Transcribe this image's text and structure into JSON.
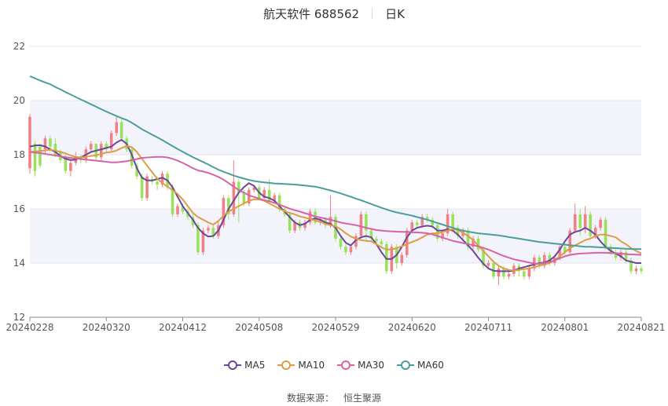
{
  "header": {
    "title": "航天软件 688562",
    "period": "日K"
  },
  "source": {
    "label": "数据来源：",
    "value": "恒生聚源"
  },
  "colors": {
    "up": "#f07f86",
    "down": "#96e35b",
    "ma5": "#6b479b",
    "ma10": "#e09b45",
    "ma30": "#d463a8",
    "ma60": "#4a9f9c",
    "band": "#f3f4fb",
    "grid": "#e3e6ef",
    "axis": "#555555"
  },
  "chart_data": {
    "type": "candlestick",
    "y_axis": {
      "min": 12,
      "max": 22,
      "ticks": [
        "12",
        "14",
        "16",
        "18",
        "20",
        "22"
      ]
    },
    "x_ticks": [
      "20240228",
      "20240320",
      "20240412",
      "20240508",
      "20240529",
      "20240620",
      "20240711",
      "20240801",
      "20240821"
    ],
    "n": 121,
    "ohlc": [
      [
        17.5,
        19.4,
        17.3,
        19.5
      ],
      [
        18.4,
        17.4,
        17.2,
        18.5
      ],
      [
        18.3,
        17.6,
        17.5,
        18.4
      ],
      [
        18.2,
        18.6,
        18.0,
        18.7
      ],
      [
        18.6,
        18.3,
        18.1,
        18.7
      ],
      [
        18.4,
        18.0,
        17.9,
        18.6
      ],
      [
        18.1,
        17.8,
        17.7,
        18.2
      ],
      [
        17.9,
        17.4,
        17.3,
        18.0
      ],
      [
        17.4,
        17.7,
        17.2,
        17.8
      ],
      [
        17.7,
        17.9,
        17.6,
        18.1
      ],
      [
        17.9,
        17.8,
        17.7,
        18.0
      ],
      [
        17.8,
        18.2,
        17.7,
        18.3
      ],
      [
        18.2,
        18.4,
        18.1,
        18.5
      ],
      [
        18.4,
        17.9,
        17.8,
        18.4
      ],
      [
        17.9,
        18.4,
        17.8,
        18.5
      ],
      [
        18.4,
        18.2,
        18.1,
        18.5
      ],
      [
        18.2,
        18.8,
        18.1,
        18.9
      ],
      [
        18.8,
        19.2,
        18.7,
        19.4
      ],
      [
        19.2,
        18.6,
        18.5,
        19.3
      ],
      [
        18.6,
        18.2,
        18.1,
        18.7
      ],
      [
        18.2,
        17.6,
        17.5,
        18.3
      ],
      [
        17.6,
        17.2,
        17.1,
        17.7
      ],
      [
        17.2,
        16.4,
        16.3,
        17.3
      ],
      [
        16.4,
        17.2,
        16.3,
        17.3
      ],
      [
        17.1,
        17.0,
        16.9,
        17.2
      ],
      [
        17.0,
        16.9,
        16.7,
        17.1
      ],
      [
        16.9,
        17.3,
        16.8,
        17.4
      ],
      [
        17.3,
        16.8,
        16.7,
        17.4
      ],
      [
        16.8,
        15.8,
        15.7,
        16.9
      ],
      [
        15.8,
        16.1,
        15.7,
        16.2
      ],
      [
        16.1,
        15.9,
        15.8,
        16.2
      ],
      [
        15.9,
        15.7,
        15.6,
        16.0
      ],
      [
        15.7,
        15.4,
        15.3,
        15.8
      ],
      [
        15.4,
        14.4,
        14.3,
        15.5
      ],
      [
        14.4,
        15.2,
        14.3,
        15.3
      ],
      [
        15.2,
        15.3,
        15.1,
        15.4
      ],
      [
        15.3,
        15.0,
        14.9,
        15.4
      ],
      [
        15.0,
        15.4,
        14.9,
        15.5
      ],
      [
        15.4,
        16.4,
        15.3,
        16.5
      ],
      [
        16.4,
        15.8,
        15.6,
        16.5
      ],
      [
        15.8,
        17.0,
        15.7,
        17.8
      ],
      [
        17.0,
        16.6,
        15.5,
        17.1
      ],
      [
        16.6,
        16.2,
        16.1,
        16.7
      ],
      [
        16.2,
        16.7,
        16.1,
        16.8
      ],
      [
        16.7,
        16.8,
        16.6,
        16.9
      ],
      [
        16.8,
        16.4,
        16.3,
        16.9
      ],
      [
        16.4,
        16.7,
        16.3,
        16.8
      ],
      [
        16.7,
        16.3,
        16.2,
        17.1
      ],
      [
        16.3,
        16.5,
        16.2,
        16.6
      ],
      [
        16.5,
        16.0,
        15.9,
        16.6
      ],
      [
        16.0,
        15.8,
        15.7,
        16.1
      ],
      [
        15.8,
        15.2,
        15.1,
        15.9
      ],
      [
        15.2,
        15.5,
        15.1,
        15.6
      ],
      [
        15.5,
        15.3,
        15.2,
        15.6
      ],
      [
        15.3,
        15.5,
        15.2,
        15.6
      ],
      [
        15.5,
        15.9,
        15.4,
        16.0
      ],
      [
        15.9,
        15.5,
        15.4,
        16.0
      ],
      [
        15.5,
        15.6,
        15.4,
        15.7
      ],
      [
        15.6,
        15.4,
        15.3,
        15.7
      ],
      [
        15.4,
        15.7,
        15.3,
        16.5
      ],
      [
        15.7,
        14.9,
        14.8,
        15.8
      ],
      [
        14.9,
        14.6,
        14.5,
        15.0
      ],
      [
        14.6,
        14.4,
        14.3,
        14.7
      ],
      [
        14.4,
        14.6,
        14.3,
        14.7
      ],
      [
        14.6,
        15.0,
        14.5,
        15.1
      ],
      [
        15.0,
        15.8,
        14.9,
        15.9
      ],
      [
        15.8,
        15.2,
        14.8,
        15.9
      ],
      [
        15.2,
        14.9,
        14.8,
        15.3
      ],
      [
        14.9,
        14.8,
        14.7,
        15.0
      ],
      [
        14.8,
        14.7,
        14.6,
        14.9
      ],
      [
        14.7,
        13.7,
        13.6,
        14.8
      ],
      [
        13.7,
        14.6,
        13.6,
        14.7
      ],
      [
        14.6,
        14.0,
        13.8,
        14.7
      ],
      [
        14.0,
        14.3,
        13.9,
        14.4
      ],
      [
        14.3,
        15.2,
        14.2,
        15.3
      ],
      [
        15.2,
        15.5,
        15.1,
        15.6
      ],
      [
        15.5,
        15.4,
        15.3,
        15.6
      ],
      [
        15.4,
        15.7,
        15.3,
        15.8
      ],
      [
        15.7,
        15.6,
        15.5,
        15.8
      ],
      [
        15.6,
        15.4,
        15.3,
        15.7
      ],
      [
        15.4,
        14.9,
        14.8,
        15.5
      ],
      [
        14.9,
        15.1,
        14.8,
        15.2
      ],
      [
        15.1,
        15.8,
        15.0,
        16.0
      ],
      [
        15.8,
        15.3,
        15.2,
        15.9
      ],
      [
        15.3,
        15.0,
        14.9,
        15.4
      ],
      [
        15.0,
        15.2,
        14.9,
        15.3
      ],
      [
        15.2,
        14.6,
        14.5,
        15.3
      ],
      [
        14.6,
        14.9,
        14.5,
        15.0
      ],
      [
        14.9,
        14.5,
        14.4,
        15.0
      ],
      [
        14.5,
        13.9,
        13.8,
        14.6
      ],
      [
        13.9,
        14.0,
        13.8,
        14.1
      ],
      [
        14.0,
        13.5,
        13.4,
        14.1
      ],
      [
        13.5,
        13.8,
        13.2,
        13.9
      ],
      [
        13.8,
        13.5,
        13.4,
        13.9
      ],
      [
        13.5,
        13.6,
        13.4,
        13.7
      ],
      [
        13.6,
        13.9,
        13.5,
        14.0
      ],
      [
        13.9,
        13.7,
        13.5,
        14.0
      ],
      [
        13.7,
        13.5,
        13.4,
        13.8
      ],
      [
        13.5,
        13.8,
        13.4,
        13.9
      ],
      [
        13.8,
        14.2,
        13.7,
        14.3
      ],
      [
        14.2,
        13.9,
        13.8,
        14.3
      ],
      [
        13.9,
        14.3,
        13.8,
        14.4
      ],
      [
        14.3,
        14.0,
        13.9,
        14.4
      ],
      [
        14.0,
        14.2,
        13.9,
        14.3
      ],
      [
        14.2,
        14.6,
        14.1,
        14.7
      ],
      [
        14.6,
        14.4,
        14.3,
        14.7
      ],
      [
        14.4,
        15.2,
        14.3,
        15.3
      ],
      [
        15.2,
        15.8,
        15.1,
        16.2
      ],
      [
        15.8,
        15.3,
        15.0,
        16.0
      ],
      [
        15.3,
        15.8,
        15.1,
        16.1
      ],
      [
        15.8,
        15.0,
        14.9,
        15.9
      ],
      [
        15.0,
        15.3,
        14.9,
        15.4
      ],
      [
        15.3,
        15.6,
        15.2,
        15.7
      ],
      [
        15.6,
        14.6,
        14.5,
        15.7
      ],
      [
        14.6,
        14.4,
        14.3,
        14.7
      ],
      [
        14.4,
        14.2,
        14.1,
        14.5
      ],
      [
        14.2,
        14.4,
        14.1,
        14.5
      ],
      [
        14.4,
        14.1,
        14.0,
        14.5
      ],
      [
        14.1,
        13.7,
        13.6,
        14.2
      ],
      [
        13.7,
        13.8,
        13.6,
        13.9
      ],
      [
        13.8,
        13.7,
        13.6,
        13.9
      ]
    ],
    "series": [
      {
        "name": "MA5",
        "values": [
          18.3,
          18.34,
          18.35,
          18.3,
          18.2,
          18.1,
          17.95,
          17.85,
          17.8,
          17.82,
          17.9,
          18.0,
          18.1,
          18.15,
          18.2,
          18.25,
          18.3,
          18.45,
          18.55,
          18.4,
          18.0,
          17.5,
          17.15,
          17.05,
          17.05,
          17.1,
          17.15,
          17.05,
          16.8,
          16.45,
          16.1,
          15.85,
          15.6,
          15.3,
          15.1,
          14.98,
          15.0,
          15.2,
          15.6,
          16.0,
          16.3,
          16.6,
          16.8,
          16.95,
          16.85,
          16.6,
          16.45,
          16.4,
          16.3,
          16.1,
          15.9,
          15.7,
          15.5,
          15.4,
          15.45,
          15.6,
          15.65,
          15.6,
          15.5,
          15.45,
          15.3,
          15.0,
          14.75,
          14.65,
          14.85,
          14.95,
          15.0,
          14.95,
          14.7,
          14.4,
          14.15,
          14.15,
          14.3,
          14.6,
          14.95,
          15.2,
          15.3,
          15.35,
          15.38,
          15.35,
          15.2,
          15.2,
          15.25,
          15.2,
          15.05,
          14.85,
          14.65,
          14.45,
          14.2,
          13.98,
          13.8,
          13.72,
          13.7,
          13.7,
          13.7,
          13.72,
          13.8,
          13.85,
          13.9,
          13.95,
          14.0,
          14.02,
          14.1,
          14.25,
          14.5,
          14.8,
          15.05,
          15.15,
          15.2,
          15.3,
          15.2,
          15.05,
          14.8,
          14.6,
          14.45,
          14.35,
          14.25,
          14.1,
          14.05,
          14.0,
          14.0
        ]
      },
      {
        "name": "MA10",
        "values": [
          18.1,
          18.12,
          18.14,
          18.16,
          18.18,
          18.15,
          18.1,
          18.05,
          17.97,
          17.92,
          17.9,
          17.92,
          17.95,
          17.98,
          18.03,
          18.08,
          18.1,
          18.15,
          18.25,
          18.32,
          18.28,
          18.1,
          17.85,
          17.6,
          17.35,
          17.12,
          16.95,
          16.82,
          16.7,
          16.55,
          16.35,
          16.1,
          15.85,
          15.7,
          15.6,
          15.5,
          15.42,
          15.55,
          15.75,
          15.9,
          16.0,
          16.1,
          16.2,
          16.3,
          16.35,
          16.35,
          16.3,
          16.2,
          16.1,
          16.0,
          15.92,
          15.85,
          15.8,
          15.72,
          15.68,
          15.62,
          15.58,
          15.52,
          15.45,
          15.4,
          15.35,
          15.25,
          15.1,
          14.98,
          14.9,
          14.85,
          14.82,
          14.8,
          14.7,
          14.58,
          14.5,
          14.5,
          14.55,
          14.62,
          14.7,
          14.78,
          14.85,
          14.95,
          15.05,
          15.1,
          15.1,
          15.15,
          15.2,
          15.25,
          15.22,
          15.12,
          15.0,
          14.85,
          14.65,
          14.45,
          14.25,
          14.05,
          13.9,
          13.8,
          13.75,
          13.72,
          13.75,
          13.78,
          13.8,
          13.85,
          13.9,
          13.95,
          14.0,
          14.1,
          14.25,
          14.4,
          14.55,
          14.65,
          14.75,
          14.85,
          14.9,
          15.0,
          15.05,
          15.05,
          15.0,
          14.95,
          14.8,
          14.7,
          14.55,
          14.45,
          14.35
        ]
      },
      {
        "name": "MA30",
        "values": [
          18.1,
          18.08,
          18.06,
          18.03,
          18.0,
          17.97,
          17.94,
          17.91,
          17.88,
          17.86,
          17.84,
          17.82,
          17.8,
          17.78,
          17.76,
          17.74,
          17.72,
          17.72,
          17.74,
          17.76,
          17.8,
          17.84,
          17.88,
          17.9,
          17.91,
          17.92,
          17.92,
          17.9,
          17.85,
          17.78,
          17.7,
          17.6,
          17.5,
          17.42,
          17.38,
          17.33,
          17.26,
          17.18,
          17.08,
          16.95,
          16.82,
          16.7,
          16.6,
          16.5,
          16.44,
          16.38,
          16.32,
          16.28,
          16.22,
          16.15,
          16.08,
          16.01,
          15.95,
          15.9,
          15.84,
          15.78,
          15.72,
          15.68,
          15.64,
          15.6,
          15.55,
          15.5,
          15.46,
          15.43,
          15.4,
          15.35,
          15.3,
          15.26,
          15.22,
          15.2,
          15.18,
          15.17,
          15.16,
          15.15,
          15.15,
          15.14,
          15.13,
          15.12,
          15.1,
          15.06,
          15.0,
          14.94,
          14.88,
          14.82,
          14.78,
          14.74,
          14.7,
          14.66,
          14.62,
          14.56,
          14.5,
          14.42,
          14.34,
          14.26,
          14.2,
          14.14,
          14.1,
          14.06,
          14.02,
          13.98,
          13.98,
          14.0,
          14.05,
          14.1,
          14.18,
          14.25,
          14.3,
          14.33,
          14.35,
          14.36,
          14.37,
          14.38,
          14.38,
          14.38,
          14.37,
          14.36,
          14.35,
          14.33,
          14.32,
          14.31,
          14.3
        ]
      },
      {
        "name": "MA60",
        "values": [
          20.9,
          20.82,
          20.74,
          20.67,
          20.6,
          20.5,
          20.41,
          20.31,
          20.22,
          20.13,
          20.04,
          19.95,
          19.86,
          19.77,
          19.68,
          19.59,
          19.51,
          19.43,
          19.35,
          19.28,
          19.18,
          19.06,
          18.94,
          18.84,
          18.74,
          18.64,
          18.54,
          18.43,
          18.32,
          18.21,
          18.11,
          18.01,
          17.91,
          17.82,
          17.73,
          17.64,
          17.54,
          17.45,
          17.37,
          17.3,
          17.23,
          17.17,
          17.12,
          17.07,
          17.03,
          17.0,
          16.98,
          16.96,
          16.94,
          16.93,
          16.92,
          16.91,
          16.9,
          16.88,
          16.86,
          16.84,
          16.82,
          16.78,
          16.73,
          16.68,
          16.63,
          16.57,
          16.51,
          16.45,
          16.38,
          16.32,
          16.25,
          16.18,
          16.11,
          16.04,
          15.98,
          15.92,
          15.87,
          15.83,
          15.79,
          15.75,
          15.7,
          15.65,
          15.6,
          15.54,
          15.48,
          15.42,
          15.36,
          15.3,
          15.24,
          15.2,
          15.16,
          15.13,
          15.1,
          15.08,
          15.06,
          15.04,
          15.02,
          14.99,
          14.96,
          14.93,
          14.9,
          14.87,
          14.84,
          14.81,
          14.78,
          14.76,
          14.74,
          14.72,
          14.7,
          14.68,
          14.66,
          14.64,
          14.62,
          14.6,
          14.6,
          14.59,
          14.58,
          14.57,
          14.56,
          14.55,
          14.54,
          14.53,
          14.52,
          14.52,
          14.52
        ]
      }
    ]
  }
}
